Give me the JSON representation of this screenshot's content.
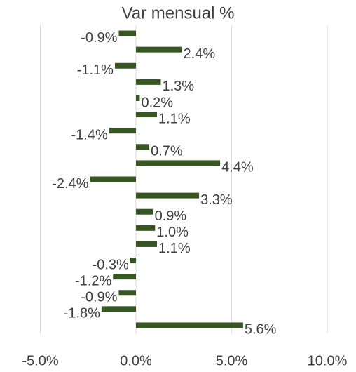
{
  "chart_data": {
    "type": "hbar",
    "title": "Var mensual %",
    "categories": [
      null,
      null,
      null,
      null,
      null,
      null,
      null,
      null,
      null,
      null,
      null,
      null,
      null,
      null,
      null,
      null,
      null,
      null,
      null
    ],
    "values": [
      -0.9,
      2.4,
      -1.1,
      1.3,
      0.2,
      1.1,
      -1.4,
      0.7,
      4.4,
      -2.4,
      3.3,
      0.9,
      1.0,
      1.1,
      -0.3,
      -1.2,
      -0.9,
      -1.8,
      5.6
    ],
    "value_labels": [
      "-0.9%",
      "2.4%",
      "-1.1%",
      "1.3%",
      "0.2%",
      "1.1%",
      "-1.4%",
      "0.7%",
      "4.4%",
      "-2.4%",
      "3.3%",
      "0.9%",
      "1.0%",
      "1.1%",
      "-0.3%",
      "-1.2%",
      "-0.9%",
      "-1.8%",
      "5.6%"
    ],
    "color": "#375623",
    "xlim": [
      -5,
      10
    ],
    "xticks": [
      {
        "value": -5,
        "label": "-5.0%"
      },
      {
        "value": 0,
        "label": "0.0%"
      },
      {
        "value": 5,
        "label": "5.0%"
      },
      {
        "value": 10,
        "label": "10.0%"
      }
    ],
    "grid": true
  }
}
